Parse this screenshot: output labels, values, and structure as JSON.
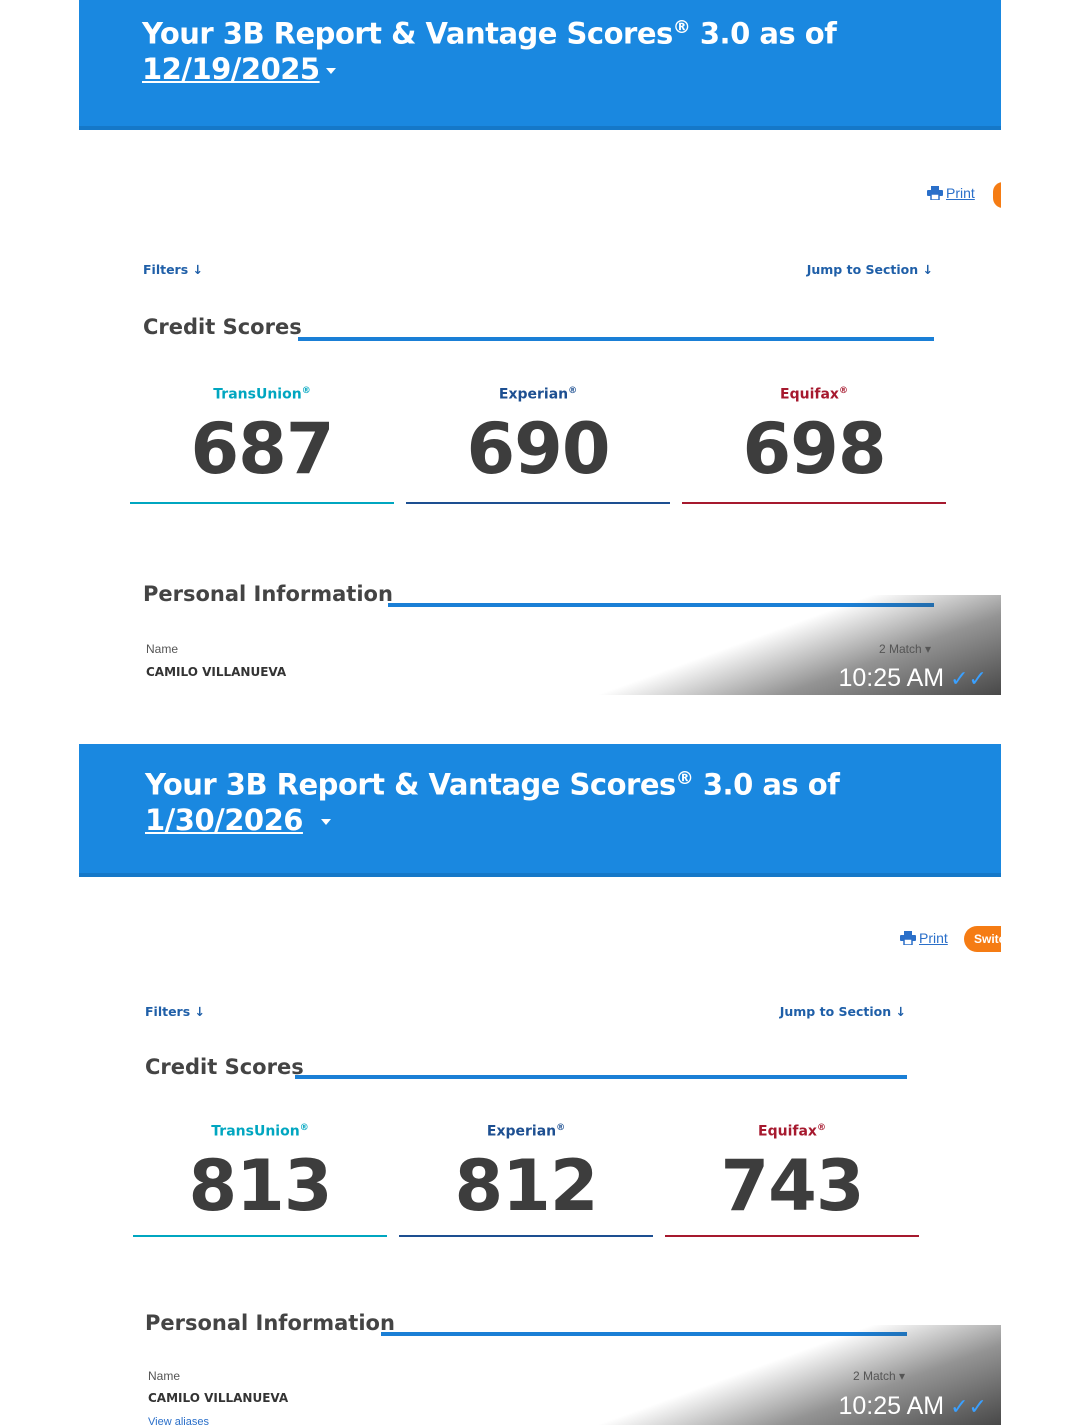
{
  "reports": [
    {
      "title": "Your 3B Report & Vantage Scores",
      "title_reg": "®",
      "title_suffix": " 3.0 as of",
      "date": "12/19/2025",
      "print_label": "Print",
      "filters_label": "Filters",
      "jump_label": "Jump to Section",
      "credit_scores_heading": "Credit Scores",
      "bureaus": [
        {
          "name": "TransUnion",
          "reg": "®",
          "score": "687",
          "color": "#00a6c0"
        },
        {
          "name": "Experian",
          "reg": "®",
          "score": "690",
          "color": "#1d4f91"
        },
        {
          "name": "Equifax",
          "reg": "®",
          "score": "698",
          "color": "#a6192e"
        }
      ],
      "personal_heading": "Personal Information",
      "name_label": "Name",
      "name_value": "CAMILO VILLANUEVA",
      "match_label": "2 Match",
      "timestamp": "10:25 AM"
    },
    {
      "title": "Your 3B Report & Vantage Scores",
      "title_reg": "®",
      "title_suffix": " 3.0 as of",
      "date": "1/30/2026",
      "print_label": "Print",
      "switch_label": "Switc",
      "filters_label": "Filters",
      "jump_label": "Jump to Section",
      "credit_scores_heading": "Credit Scores",
      "bureaus": [
        {
          "name": "TransUnion",
          "reg": "®",
          "score": "813",
          "color": "#00a6c0"
        },
        {
          "name": "Experian",
          "reg": "®",
          "score": "812",
          "color": "#1d4f91"
        },
        {
          "name": "Equifax",
          "reg": "®",
          "score": "743",
          "color": "#a6192e"
        }
      ],
      "personal_heading": "Personal Information",
      "name_label": "Name",
      "name_value": "CAMILO VILLANUEVA",
      "view_aliases": "View aliases",
      "match_label": "2 Match",
      "timestamp": "10:25 AM"
    }
  ]
}
